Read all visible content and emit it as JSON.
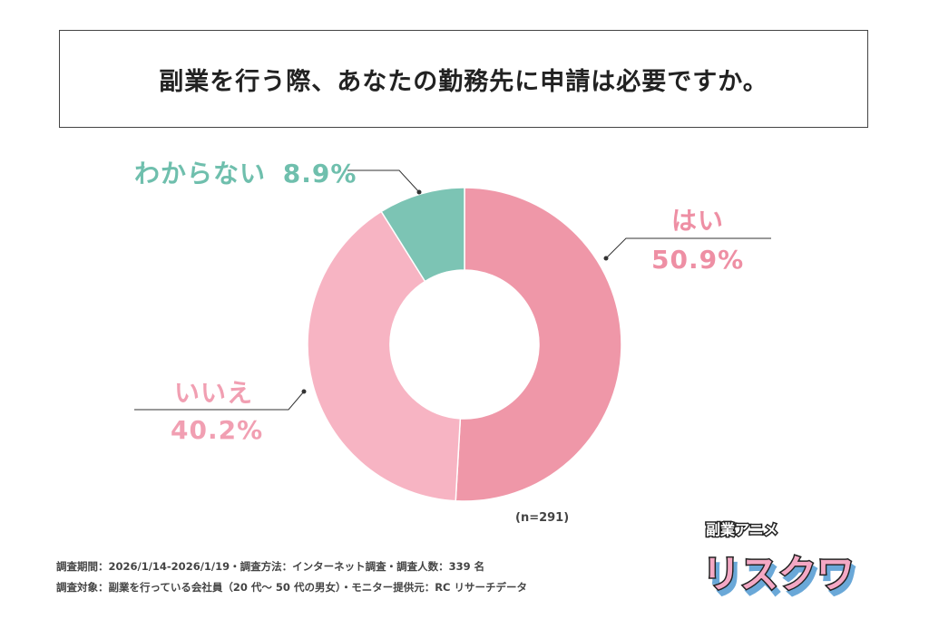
{
  "title": "副業を行う際、あなたの勤務先に申請は必要ですか。",
  "chart_data": {
    "type": "donut",
    "title": "副業を行う際、あなたの勤務先に申請は必要ですか。",
    "slices": [
      {
        "label": "はい",
        "value": 50.9,
        "display": "50.9%",
        "color": "#ef97a8",
        "label_color": "#ee8fa4"
      },
      {
        "label": "いいえ",
        "value": 40.2,
        "display": "40.2%",
        "color": "#f7b4c3",
        "label_color": "#f19fb2"
      },
      {
        "label": "わからない",
        "value": 8.9,
        "display": "8.9%",
        "color": "#7cc4b4",
        "label_color": "#6fbfad"
      }
    ],
    "start": "top",
    "direction": "clockwise",
    "sample": "(n=291)"
  },
  "footer": {
    "line1": "調査期間：2026/1/14-2026/1/19・調査方法：インターネット調査・調査人数：339 名",
    "line2": "調査対象：副業を行っている会社員（20 代～ 50 代の男女）・モニター提供元：RC リサーチデータ"
  },
  "logo": {
    "small": "副業アニメ",
    "big": "リスクワ"
  }
}
